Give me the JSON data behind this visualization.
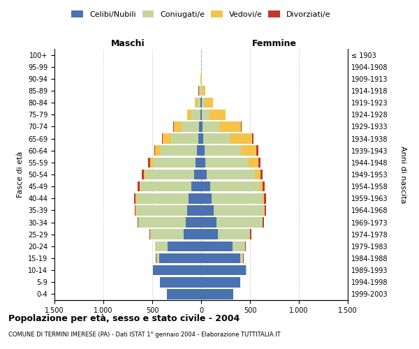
{
  "age_groups": [
    "0-4",
    "5-9",
    "10-14",
    "15-19",
    "20-24",
    "25-29",
    "30-34",
    "35-39",
    "40-44",
    "45-49",
    "50-54",
    "55-59",
    "60-64",
    "65-69",
    "70-74",
    "75-79",
    "80-84",
    "85-89",
    "90-94",
    "95-99",
    "100+"
  ],
  "birth_years": [
    "1999-2003",
    "1994-1998",
    "1989-1993",
    "1984-1988",
    "1979-1983",
    "1974-1978",
    "1969-1973",
    "1964-1968",
    "1959-1963",
    "1954-1958",
    "1949-1953",
    "1944-1948",
    "1939-1943",
    "1934-1938",
    "1929-1933",
    "1924-1928",
    "1919-1923",
    "1914-1918",
    "1909-1913",
    "1904-1908",
    "≤ 1903"
  ],
  "male_celibi": [
    350,
    420,
    490,
    430,
    340,
    180,
    160,
    145,
    130,
    100,
    70,
    55,
    45,
    30,
    20,
    8,
    4,
    2,
    0,
    0,
    0
  ],
  "male_coniugati": [
    1,
    2,
    5,
    30,
    130,
    340,
    480,
    520,
    530,
    520,
    500,
    440,
    370,
    280,
    180,
    90,
    40,
    15,
    3,
    0,
    0
  ],
  "male_vedovi": [
    0,
    0,
    0,
    0,
    1,
    2,
    3,
    5,
    8,
    10,
    15,
    30,
    55,
    80,
    80,
    45,
    20,
    8,
    1,
    0,
    0
  ],
  "male_divorziati": [
    0,
    0,
    1,
    2,
    3,
    5,
    10,
    12,
    15,
    18,
    20,
    18,
    12,
    8,
    5,
    3,
    2,
    1,
    0,
    0,
    0
  ],
  "female_celibi": [
    330,
    400,
    460,
    400,
    320,
    170,
    155,
    130,
    110,
    90,
    60,
    45,
    35,
    22,
    15,
    8,
    4,
    2,
    0,
    0,
    0
  ],
  "female_coniugati": [
    1,
    2,
    5,
    30,
    130,
    330,
    470,
    510,
    520,
    510,
    490,
    440,
    370,
    270,
    170,
    80,
    35,
    12,
    3,
    0,
    0
  ],
  "female_vedovi": [
    0,
    0,
    0,
    1,
    2,
    3,
    5,
    10,
    15,
    28,
    55,
    100,
    160,
    230,
    220,
    160,
    80,
    30,
    5,
    1,
    0
  ],
  "female_divorziati": [
    0,
    0,
    1,
    2,
    4,
    8,
    12,
    14,
    18,
    22,
    25,
    22,
    18,
    12,
    8,
    5,
    3,
    2,
    0,
    0,
    0
  ],
  "colors": {
    "celibi": "#4a72b0",
    "coniugati": "#c5d5a0",
    "vedovi": "#f5c34a",
    "divorziati": "#c0392b"
  },
  "title": "Popolazione per età, sesso e stato civile - 2004",
  "subtitle": "COMUNE DI TERMINI IMERESE (PA) - Dati ISTAT 1° gennaio 2004 - Elaborazione TUTTITALIA.IT",
  "xlabel_left": "Maschi",
  "xlabel_right": "Femmine",
  "ylabel": "Fasce di età",
  "ylabel_right": "Anni di nascita",
  "xlim": 1500,
  "background_color": "#ffffff",
  "grid_color": "#cccccc"
}
